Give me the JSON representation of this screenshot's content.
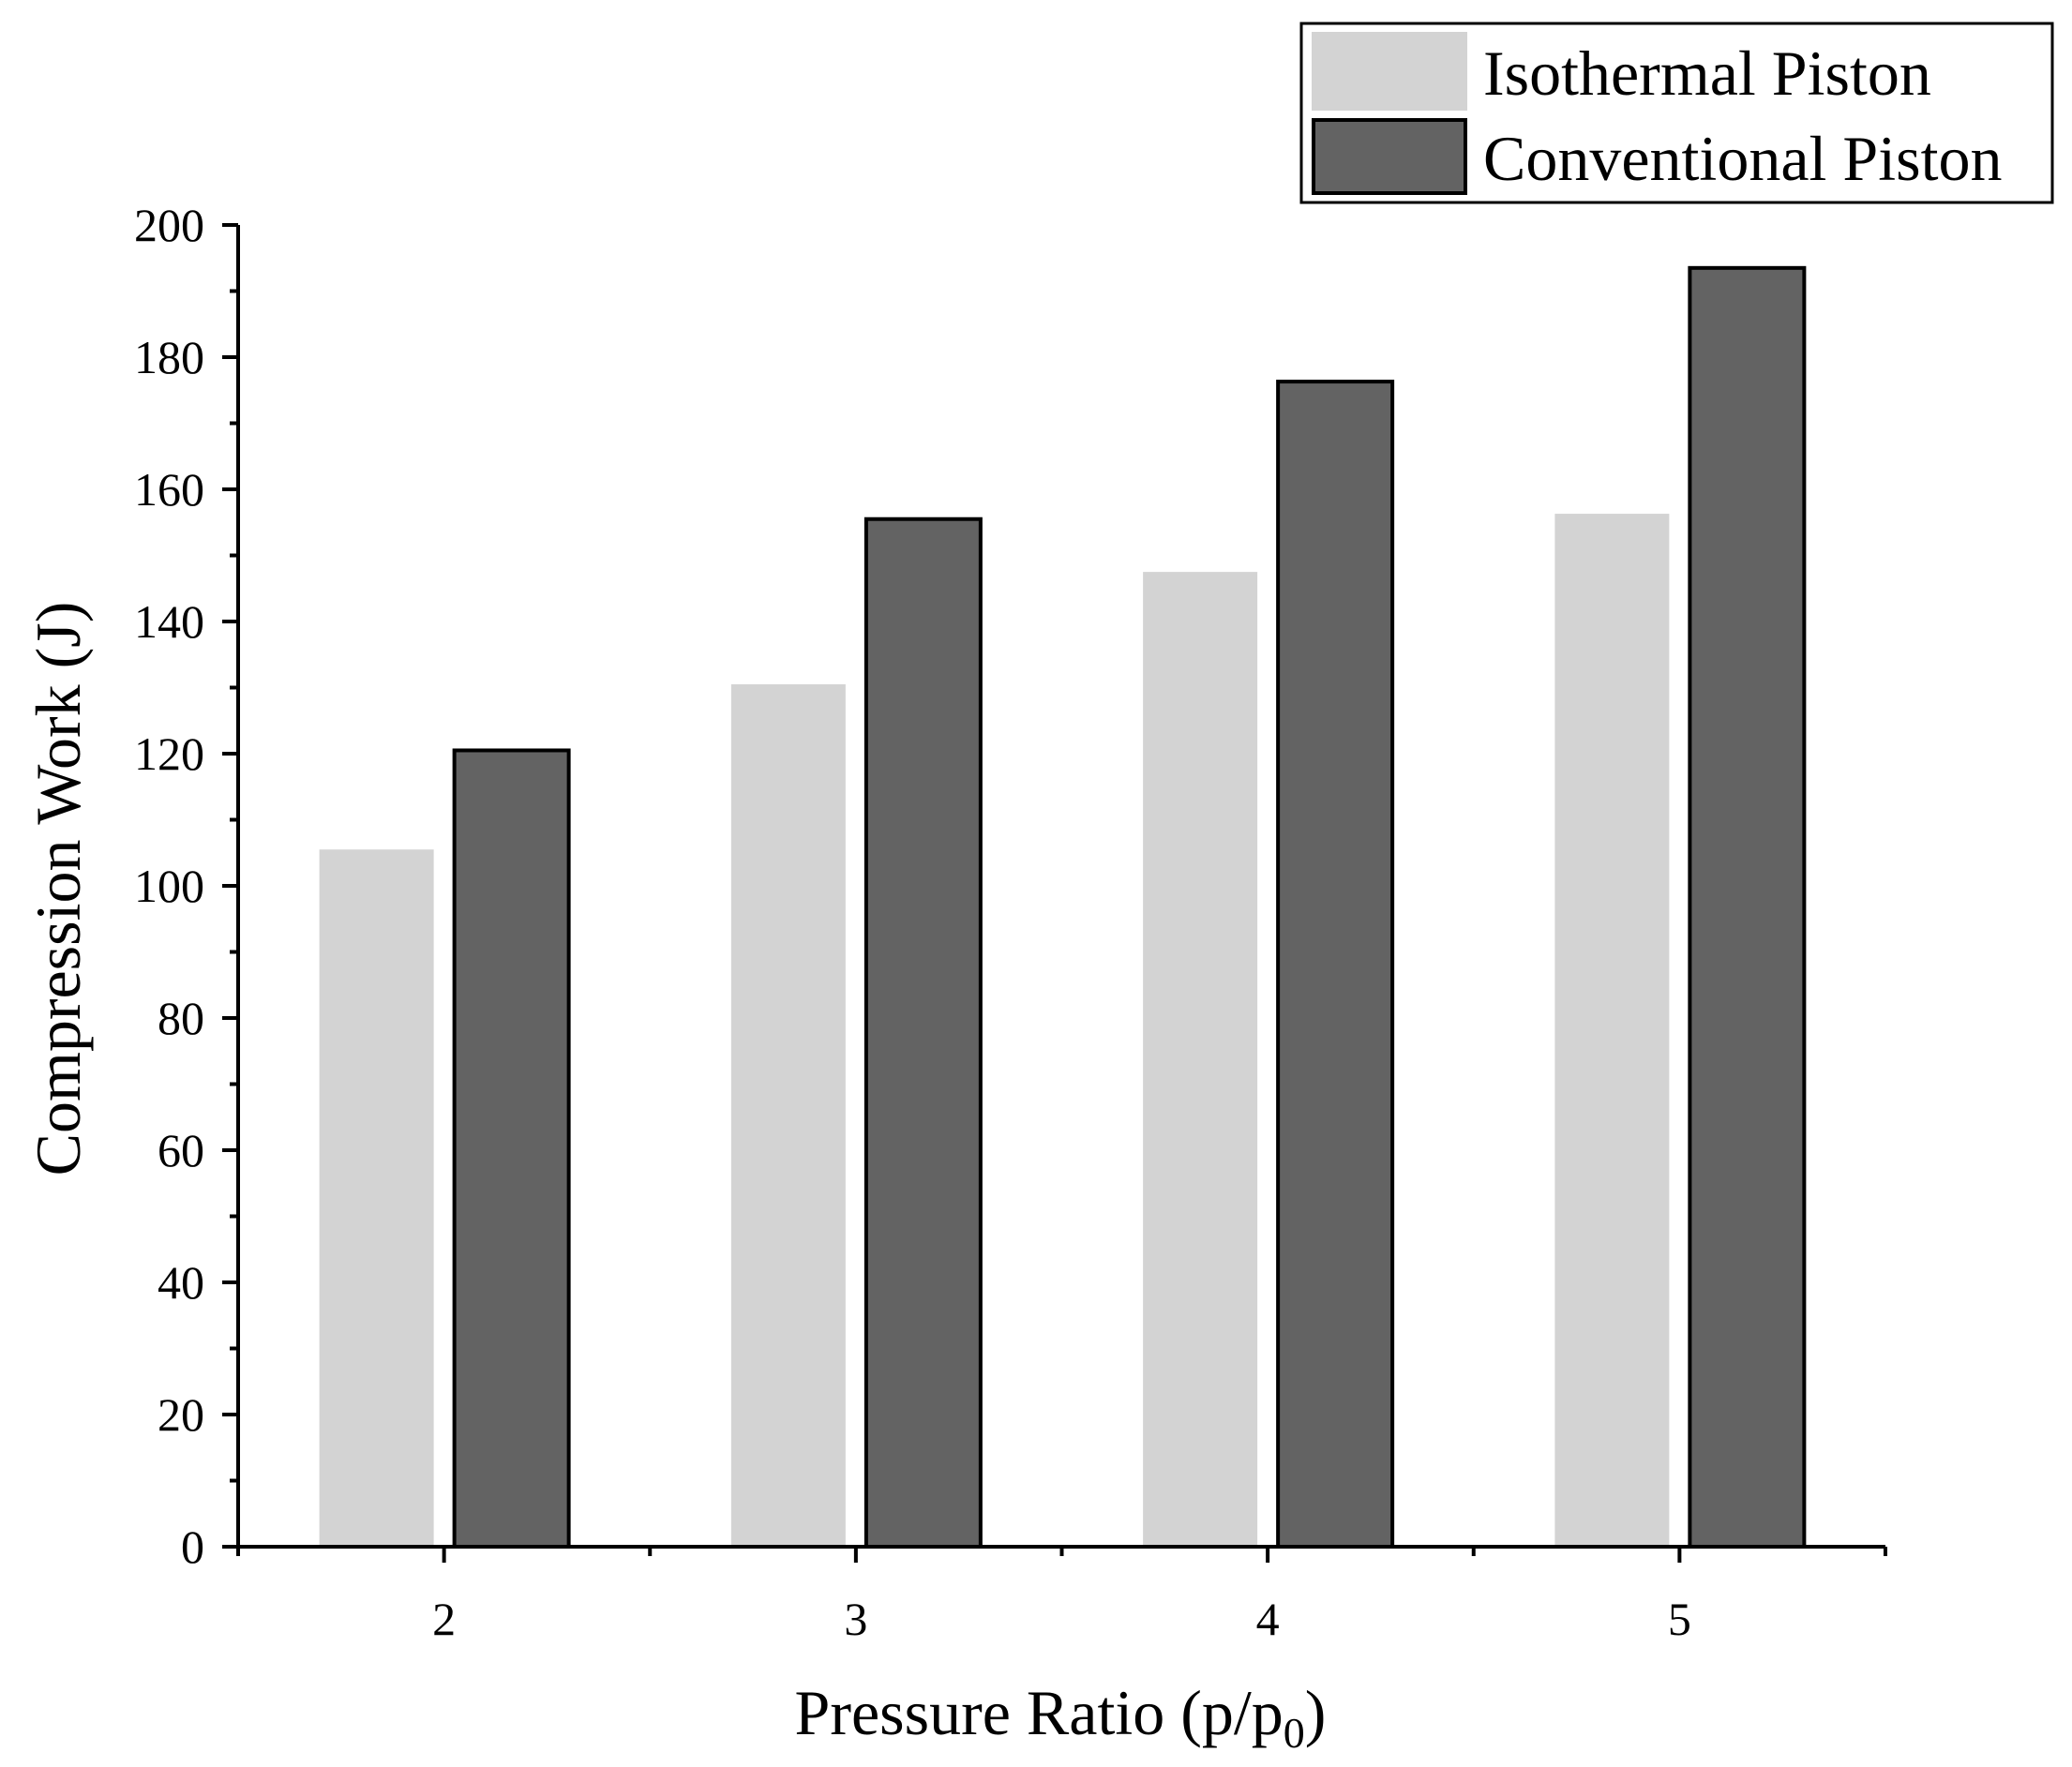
{
  "chart_data": {
    "type": "bar",
    "title": "",
    "xlabel": "Pressure Ratio (p/p",
    "xlabel_subscript": "0",
    "xlabel_suffix": ")",
    "ylabel": "Compression Work (J)",
    "categories": [
      "2",
      "3",
      "4",
      "5"
    ],
    "ylim": [
      0,
      200
    ],
    "yticks": [
      0,
      20,
      40,
      60,
      80,
      100,
      120,
      140,
      160,
      180,
      200
    ],
    "ytick_labels": [
      "0",
      "20",
      "40",
      "60",
      "80",
      "100",
      "120",
      "140",
      "160",
      "180",
      "200"
    ],
    "grid": false,
    "legend_position": "top-right",
    "series": [
      {
        "name": "Isothermal Piston",
        "values": [
          105.5,
          130.5,
          147.5,
          156.3
        ],
        "color": "#d3d3d3",
        "outlined": false
      },
      {
        "name": "Conventional Piston",
        "values": [
          120.5,
          155.5,
          176.3,
          193.5
        ],
        "color": "#636363",
        "outlined": true
      }
    ]
  }
}
